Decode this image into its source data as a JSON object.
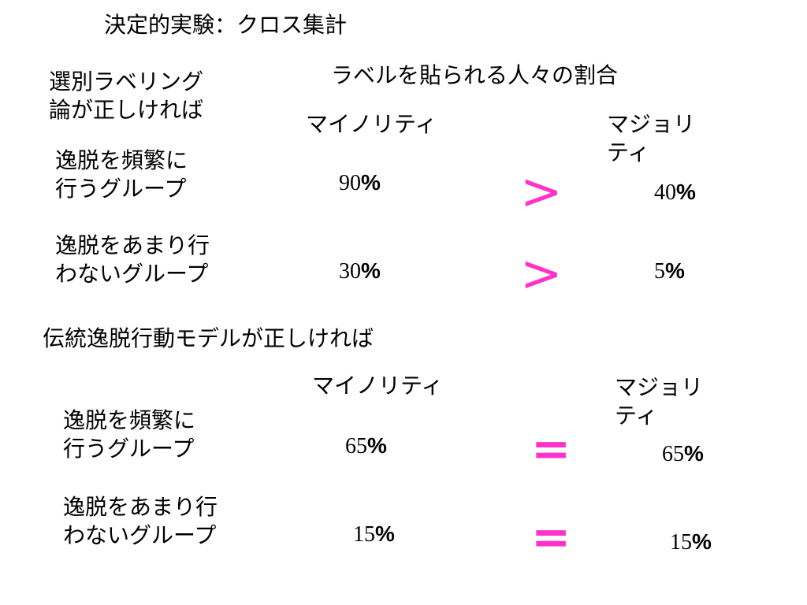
{
  "title": "決定的実験：クロス集計",
  "column_header": "ラベルを貼られる人々の割合",
  "accent_color": "#ff33cc",
  "section1": {
    "condition": [
      "選別ラベリング",
      "論が正しければ"
    ],
    "minority_label": "マイノリティ",
    "majority_label": [
      "マジョリ",
      "ティ"
    ],
    "rows": [
      {
        "group": [
          "逸脱を頻繁に",
          "行うグループ"
        ],
        "minority_value": "90",
        "comparison": ">",
        "majority_value": "40"
      },
      {
        "group": [
          "逸脱をあまり行",
          "わないグループ"
        ],
        "minority_value": "30",
        "comparison": ">",
        "majority_value": "5"
      }
    ]
  },
  "section2": {
    "condition": "伝統逸脱行動モデルが正しければ",
    "minority_label": "マイノリティ",
    "majority_label": [
      "マジョリ",
      "ティ"
    ],
    "rows": [
      {
        "group": [
          "逸脱を頻繁に",
          "行うグループ"
        ],
        "minority_value": "65",
        "comparison": "=",
        "majority_value": "65"
      },
      {
        "group": [
          "逸脱をあまり行",
          "わないグループ"
        ],
        "minority_value": "15",
        "comparison": "=",
        "majority_value": "15"
      }
    ]
  },
  "percent_sign": "%"
}
